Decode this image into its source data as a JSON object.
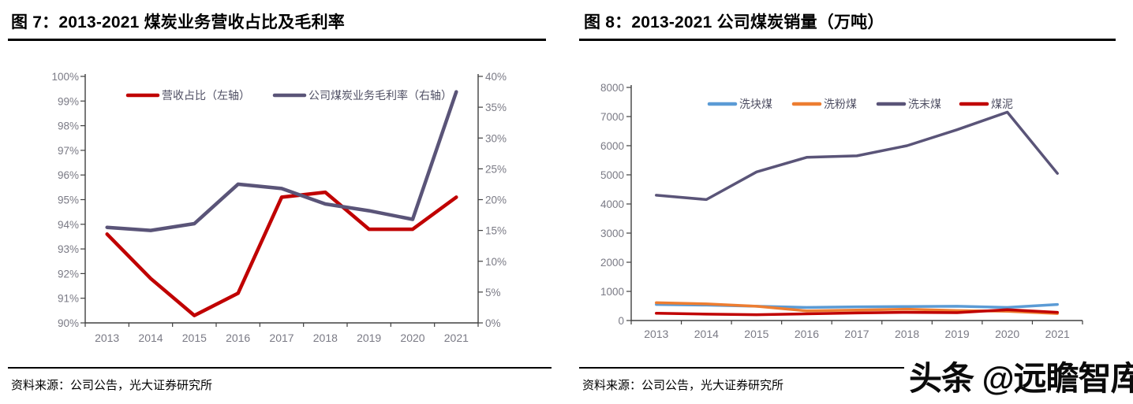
{
  "figure7": {
    "title": "图 7：2013-2021 煤炭业务营收占比及毛利率",
    "source": "资料来源：公司公告，光大证券研究所"
  },
  "figure8": {
    "title": "图 8：2013-2021 公司煤炭销量（万吨）",
    "source": "资料来源：公司公告，光大证券研究所"
  },
  "watermark": "头条 @远瞻智库",
  "colors": {
    "accent_red": "#C00000",
    "accent_purple": "#5A5478",
    "accent_blue": "#5B9BD5",
    "accent_orange": "#ED7D31",
    "axis_line": "#404040",
    "tick_text": "#7A7A85",
    "legend_text": "#4F4F63"
  },
  "chart_data": [
    {
      "id": "fig7",
      "type": "line",
      "title": "图 7：2013-2021 煤炭业务营收占比及毛利率",
      "categories": [
        "2013",
        "2014",
        "2015",
        "2016",
        "2017",
        "2018",
        "2019",
        "2020",
        "2021"
      ],
      "series": [
        {
          "key": "revenue-share",
          "name": "营收占比（左轴）",
          "axis": "left",
          "color": "#C00000",
          "values": [
            93.6,
            91.8,
            90.3,
            91.2,
            95.1,
            95.3,
            93.8,
            93.8,
            95.1
          ]
        },
        {
          "key": "coal-gross-margin",
          "name": "公司煤炭业务毛利率（右轴）",
          "axis": "right",
          "color": "#5A5478",
          "values": [
            15.5,
            15.0,
            16.1,
            22.5,
            21.8,
            19.3,
            18.2,
            16.8,
            37.5
          ]
        }
      ],
      "left_axis": {
        "min": 90,
        "max": 100,
        "step": 1,
        "unit": "%",
        "tick_labels": [
          "100%",
          "99%",
          "98%",
          "97%",
          "96%",
          "95%",
          "94%",
          "93%",
          "92%",
          "91%",
          "90%"
        ]
      },
      "right_axis": {
        "min": 0,
        "max": 40,
        "step": 5,
        "unit": "%",
        "tick_labels": [
          "40%",
          "35%",
          "30%",
          "25%",
          "20%",
          "15%",
          "10%",
          "5%",
          "0%"
        ]
      },
      "legend_position": "top",
      "grid": false
    },
    {
      "id": "fig8",
      "type": "line",
      "title": "图 8：2013-2021 公司煤炭销量（万吨）",
      "categories": [
        "2013",
        "2014",
        "2015",
        "2016",
        "2017",
        "2018",
        "2019",
        "2020",
        "2021"
      ],
      "series": [
        {
          "key": "washed-lump-coal",
          "name": "洗块煤",
          "axis": "left",
          "color": "#5B9BD5",
          "values": [
            550,
            530,
            490,
            450,
            470,
            480,
            490,
            450,
            550
          ]
        },
        {
          "key": "washed-fine-coal",
          "name": "洗粉煤",
          "axis": "left",
          "color": "#ED7D31",
          "values": [
            610,
            570,
            490,
            330,
            360,
            390,
            340,
            320,
            240
          ]
        },
        {
          "key": "washed-slack-coal",
          "name": "洗末煤",
          "axis": "left",
          "color": "#5A5478",
          "values": [
            4300,
            4150,
            5100,
            5600,
            5650,
            6000,
            6550,
            7150,
            5050
          ]
        },
        {
          "key": "coal-slime",
          "name": "煤泥",
          "axis": "left",
          "color": "#C00000",
          "values": [
            250,
            220,
            200,
            230,
            260,
            280,
            270,
            370,
            280
          ]
        }
      ],
      "left_axis": {
        "min": 0,
        "max": 8000,
        "step": 1000,
        "tick_labels": [
          "8000",
          "7000",
          "6000",
          "5000",
          "4000",
          "3000",
          "2000",
          "1000",
          "0"
        ]
      },
      "legend_position": "top",
      "grid": false
    }
  ]
}
